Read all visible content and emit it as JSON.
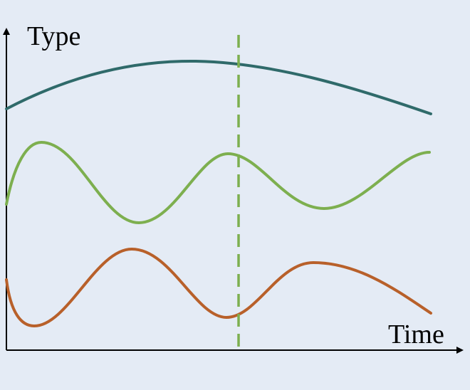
{
  "axes": {
    "y_label": "Type",
    "x_label": "Time"
  },
  "colors": {
    "background": "#e4ebf5",
    "axis": "#000000",
    "curve_top": "#2f6a6a",
    "curve_middle": "#7daf4f",
    "curve_bottom": "#b8602a",
    "marker_line": "#7daf4f"
  },
  "curves": [
    {
      "name": "top-curve",
      "color_key": "curve_top"
    },
    {
      "name": "middle-curve",
      "color_key": "curve_middle"
    },
    {
      "name": "bottom-curve",
      "color_key": "curve_bottom"
    }
  ],
  "marker": {
    "style": "dashed",
    "color_key": "marker_line"
  }
}
